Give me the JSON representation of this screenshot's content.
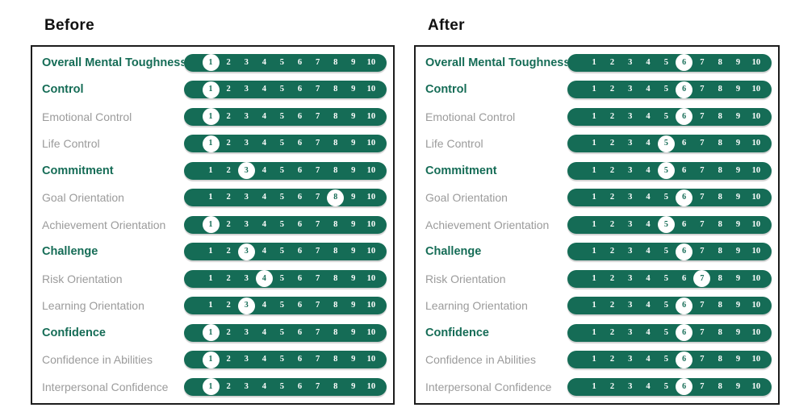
{
  "scale": {
    "min": 1,
    "max": 10,
    "ticks": [
      "1",
      "2",
      "3",
      "4",
      "5",
      "6",
      "7",
      "8",
      "9",
      "10"
    ]
  },
  "colors": {
    "pill_green": "#156c56",
    "header_text_green": "#156c56",
    "sub_label_gray": "#9b9b9b",
    "panel_border": "#1c1c1c",
    "highlight_circle": "#ffffff",
    "tick_text": "#ffffff",
    "title_text": "#111111"
  },
  "panels": [
    {
      "title": "Before",
      "rows": [
        {
          "label": "Overall Mental Toughness",
          "bold": true,
          "value": 1
        },
        {
          "label": "Control",
          "bold": true,
          "value": 1
        },
        {
          "label": "Emotional Control",
          "bold": false,
          "value": 1
        },
        {
          "label": "Life Control",
          "bold": false,
          "value": 1
        },
        {
          "label": "Commitment",
          "bold": true,
          "value": 3
        },
        {
          "label": "Goal Orientation",
          "bold": false,
          "value": 8
        },
        {
          "label": "Achievement Orientation",
          "bold": false,
          "value": 1
        },
        {
          "label": "Challenge",
          "bold": true,
          "value": 3
        },
        {
          "label": "Risk Orientation",
          "bold": false,
          "value": 4
        },
        {
          "label": "Learning Orientation",
          "bold": false,
          "value": 3
        },
        {
          "label": "Confidence",
          "bold": true,
          "value": 1
        },
        {
          "label": "Confidence in Abilities",
          "bold": false,
          "value": 1
        },
        {
          "label": "Interpersonal Confidence",
          "bold": false,
          "value": 1
        }
      ]
    },
    {
      "title": "After",
      "rows": [
        {
          "label": "Overall Mental Toughness",
          "bold": true,
          "value": 6
        },
        {
          "label": "Control",
          "bold": true,
          "value": 6
        },
        {
          "label": "Emotional Control",
          "bold": false,
          "value": 6
        },
        {
          "label": "Life Control",
          "bold": false,
          "value": 5
        },
        {
          "label": "Commitment",
          "bold": true,
          "value": 5
        },
        {
          "label": "Goal Orientation",
          "bold": false,
          "value": 6
        },
        {
          "label": "Achievement Orientation",
          "bold": false,
          "value": 5
        },
        {
          "label": "Challenge",
          "bold": true,
          "value": 6
        },
        {
          "label": "Risk Orientation",
          "bold": false,
          "value": 7
        },
        {
          "label": "Learning Orientation",
          "bold": false,
          "value": 6
        },
        {
          "label": "Confidence",
          "bold": true,
          "value": 6
        },
        {
          "label": "Confidence in Abilities",
          "bold": false,
          "value": 6
        },
        {
          "label": "Interpersonal Confidence",
          "bold": false,
          "value": 6
        }
      ]
    }
  ],
  "chart_data": {
    "type": "table",
    "title": "",
    "categories": [
      "Overall Mental Toughness",
      "Control",
      "Emotional Control",
      "Life Control",
      "Commitment",
      "Goal Orientation",
      "Achievement Orientation",
      "Challenge",
      "Risk Orientation",
      "Learning Orientation",
      "Confidence",
      "Confidence in Abilities",
      "Interpersonal Confidence"
    ],
    "bold_categories": [
      "Overall Mental Toughness",
      "Control",
      "Commitment",
      "Challenge",
      "Confidence"
    ],
    "series": [
      {
        "name": "Before",
        "values": [
          1,
          1,
          1,
          1,
          3,
          8,
          1,
          3,
          4,
          3,
          1,
          1,
          1
        ]
      },
      {
        "name": "After",
        "values": [
          6,
          6,
          6,
          5,
          5,
          6,
          5,
          6,
          7,
          6,
          6,
          6,
          6
        ]
      }
    ],
    "scale": {
      "min": 1,
      "max": 10
    },
    "legend_position": "panel-titles-top",
    "grid": false
  }
}
